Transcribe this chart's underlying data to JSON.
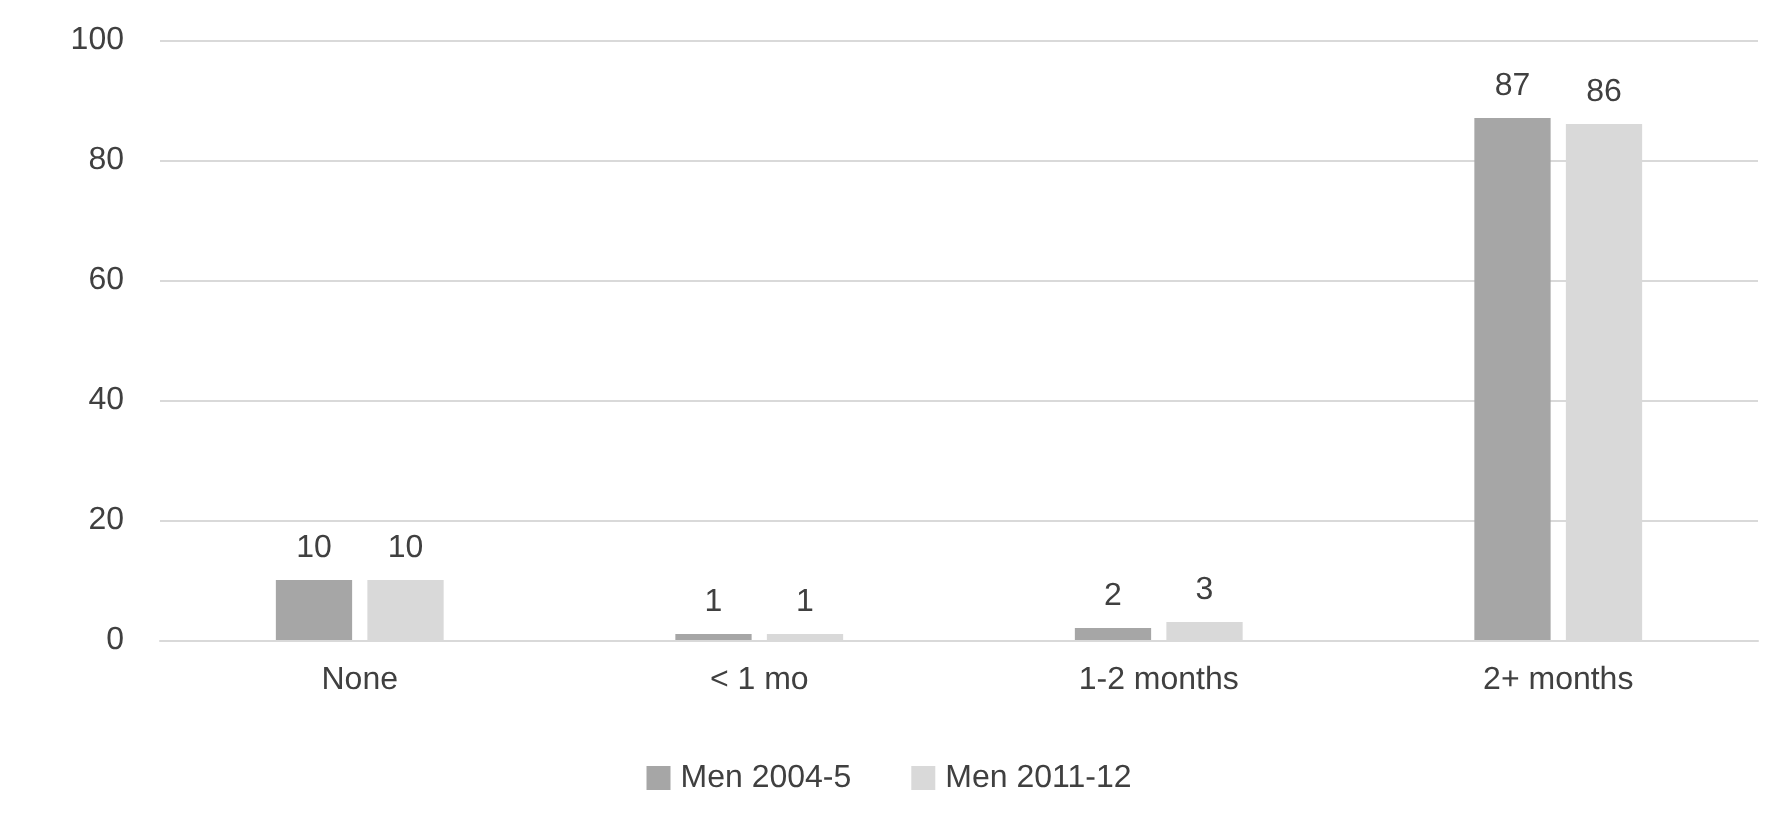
{
  "chart_data": {
    "type": "bar",
    "categories": [
      "None",
      "< 1 mo",
      "1-2 months",
      "2+ months"
    ],
    "series": [
      {
        "name": "Men 2004-5",
        "color": "#a6a6a6",
        "values": [
          10,
          1,
          2,
          87
        ]
      },
      {
        "name": "Men 2011-12",
        "color": "#d9d9d9",
        "values": [
          10,
          1,
          3,
          86
        ]
      }
    ],
    "ylim": [
      0,
      100
    ],
    "yticks": [
      0,
      20,
      40,
      60,
      80,
      100
    ],
    "grid": "y",
    "legend": "bottom",
    "data_labels": true
  }
}
